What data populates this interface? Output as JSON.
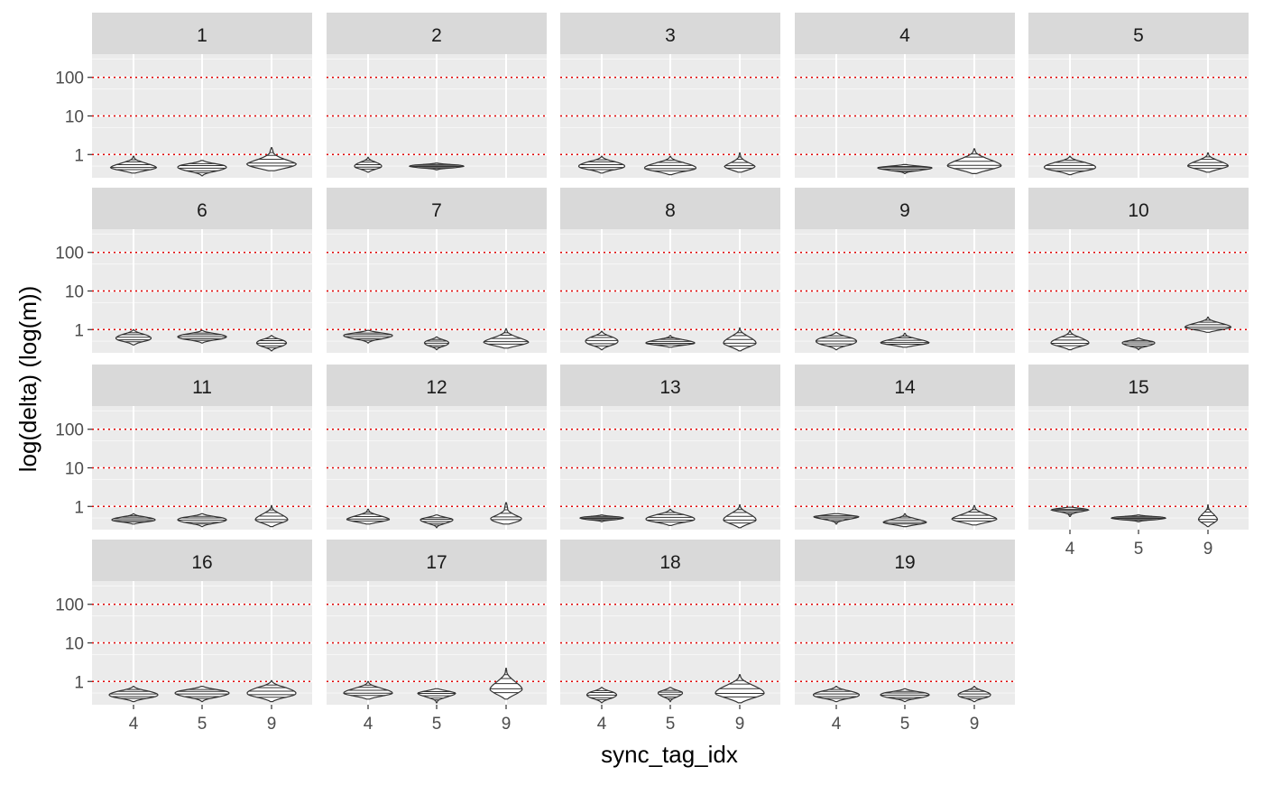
{
  "chart_data": {
    "type": "violin",
    "faceted": true,
    "xlabel": "sync_tag_idx",
    "ylabel": "log(delta) (log(m))",
    "x_categories": [
      "4",
      "5",
      "9"
    ],
    "y_scale": "log10",
    "y_ticks": [
      1,
      10,
      100
    ],
    "y_tick_labels": [
      "1",
      "10",
      "100"
    ],
    "ylim": [
      0.25,
      400
    ],
    "reference_lines": {
      "values": [
        1,
        10,
        100
      ],
      "color": "#e00000",
      "style": "dotted"
    },
    "panel_background": "#ebebeb",
    "strip_background": "#d9d9d9",
    "grid": true,
    "panels": [
      {
        "label": "1",
        "violins": [
          {
            "x": "4",
            "min": 0.33,
            "max": 0.9,
            "peak": 0.45,
            "width": 0.85
          },
          {
            "x": "5",
            "min": 0.28,
            "max": 0.7,
            "peak": 0.47,
            "width": 0.9
          },
          {
            "x": "9",
            "min": 0.38,
            "max": 1.5,
            "peak": 0.5,
            "width": 1.0
          }
        ]
      },
      {
        "label": "2",
        "violins": [
          {
            "x": "4",
            "min": 0.35,
            "max": 0.85,
            "peak": 0.5,
            "width": 0.5
          },
          {
            "x": "5",
            "min": 0.4,
            "max": 0.6,
            "peak": 0.5,
            "width": 1.0
          }
        ]
      },
      {
        "label": "3",
        "violins": [
          {
            "x": "4",
            "min": 0.33,
            "max": 0.9,
            "peak": 0.5,
            "width": 0.85
          },
          {
            "x": "5",
            "min": 0.3,
            "max": 0.9,
            "peak": 0.45,
            "width": 0.95
          },
          {
            "x": "9",
            "min": 0.35,
            "max": 1.1,
            "peak": 0.45,
            "width": 0.6
          }
        ]
      },
      {
        "label": "4",
        "violins": [
          {
            "x": "5",
            "min": 0.32,
            "max": 0.55,
            "peak": 0.45,
            "width": 1.0
          },
          {
            "x": "9",
            "min": 0.32,
            "max": 1.4,
            "peak": 0.5,
            "width": 1.0
          }
        ]
      },
      {
        "label": "5",
        "violins": [
          {
            "x": "4",
            "min": 0.3,
            "max": 0.9,
            "peak": 0.47,
            "width": 0.95
          },
          {
            "x": "9",
            "min": 0.35,
            "max": 1.1,
            "peak": 0.5,
            "width": 0.75
          }
        ]
      },
      {
        "label": "6",
        "violins": [
          {
            "x": "4",
            "min": 0.4,
            "max": 1.0,
            "peak": 0.6,
            "width": 0.65
          },
          {
            "x": "5",
            "min": 0.45,
            "max": 0.95,
            "peak": 0.65,
            "width": 0.9
          },
          {
            "x": "9",
            "min": 0.28,
            "max": 0.7,
            "peak": 0.45,
            "width": 0.55
          }
        ]
      },
      {
        "label": "7",
        "violins": [
          {
            "x": "4",
            "min": 0.45,
            "max": 0.95,
            "peak": 0.7,
            "width": 0.9
          },
          {
            "x": "5",
            "min": 0.3,
            "max": 0.65,
            "peak": 0.45,
            "width": 0.45
          },
          {
            "x": "9",
            "min": 0.33,
            "max": 1.05,
            "peak": 0.45,
            "width": 0.85
          }
        ]
      },
      {
        "label": "8",
        "violins": [
          {
            "x": "4",
            "min": 0.3,
            "max": 0.9,
            "peak": 0.5,
            "width": 0.6
          },
          {
            "x": "5",
            "min": 0.35,
            "max": 0.7,
            "peak": 0.45,
            "width": 0.9
          },
          {
            "x": "9",
            "min": 0.28,
            "max": 1.1,
            "peak": 0.45,
            "width": 0.6
          }
        ]
      },
      {
        "label": "9",
        "violins": [
          {
            "x": "4",
            "min": 0.3,
            "max": 0.85,
            "peak": 0.5,
            "width": 0.75
          },
          {
            "x": "5",
            "min": 0.35,
            "max": 0.8,
            "peak": 0.45,
            "width": 0.9
          }
        ]
      },
      {
        "label": "10",
        "violins": [
          {
            "x": "4",
            "min": 0.3,
            "max": 0.95,
            "peak": 0.45,
            "width": 0.7
          },
          {
            "x": "5",
            "min": 0.3,
            "max": 0.6,
            "peak": 0.45,
            "width": 0.6
          },
          {
            "x": "9",
            "min": 0.85,
            "max": 2.1,
            "peak": 1.15,
            "width": 0.85
          }
        ]
      },
      {
        "label": "11",
        "violins": [
          {
            "x": "4",
            "min": 0.35,
            "max": 0.65,
            "peak": 0.45,
            "width": 0.8
          },
          {
            "x": "5",
            "min": 0.3,
            "max": 0.65,
            "peak": 0.45,
            "width": 0.9
          },
          {
            "x": "9",
            "min": 0.3,
            "max": 1.05,
            "peak": 0.45,
            "width": 0.6
          }
        ]
      },
      {
        "label": "12",
        "violins": [
          {
            "x": "4",
            "min": 0.35,
            "max": 0.85,
            "peak": 0.45,
            "width": 0.8
          },
          {
            "x": "5",
            "min": 0.28,
            "max": 0.6,
            "peak": 0.45,
            "width": 0.6
          },
          {
            "x": "9",
            "min": 0.35,
            "max": 1.25,
            "peak": 0.4,
            "width": 0.75
          }
        ]
      },
      {
        "label": "13",
        "violins": [
          {
            "x": "4",
            "min": 0.4,
            "max": 0.6,
            "peak": 0.5,
            "width": 0.8
          },
          {
            "x": "5",
            "min": 0.32,
            "max": 0.85,
            "peak": 0.47,
            "width": 0.9
          },
          {
            "x": "9",
            "min": 0.28,
            "max": 1.1,
            "peak": 0.45,
            "width": 0.6
          }
        ]
      },
      {
        "label": "14",
        "violins": [
          {
            "x": "4",
            "min": 0.35,
            "max": 0.65,
            "peak": 0.55,
            "width": 0.85
          },
          {
            "x": "5",
            "min": 0.3,
            "max": 0.65,
            "peak": 0.38,
            "width": 0.8
          },
          {
            "x": "9",
            "min": 0.33,
            "max": 1.05,
            "peak": 0.45,
            "width": 0.85
          }
        ]
      },
      {
        "label": "15",
        "violins": [
          {
            "x": "4",
            "min": 0.55,
            "max": 0.95,
            "peak": 0.85,
            "width": 0.75
          },
          {
            "x": "5",
            "min": 0.4,
            "max": 0.6,
            "peak": 0.5,
            "width": 1.0
          },
          {
            "x": "9",
            "min": 0.3,
            "max": 1.1,
            "peak": 0.45,
            "width": 0.35
          }
        ]
      },
      {
        "label": "16",
        "violins": [
          {
            "x": "4",
            "min": 0.3,
            "max": 0.75,
            "peak": 0.45,
            "width": 0.9
          },
          {
            "x": "5",
            "min": 0.3,
            "max": 0.75,
            "peak": 0.5,
            "width": 1.0
          },
          {
            "x": "9",
            "min": 0.3,
            "max": 1.05,
            "peak": 0.5,
            "width": 0.9
          }
        ]
      },
      {
        "label": "17",
        "violins": [
          {
            "x": "4",
            "min": 0.35,
            "max": 1.0,
            "peak": 0.5,
            "width": 0.9
          },
          {
            "x": "5",
            "min": 0.28,
            "max": 0.65,
            "peak": 0.5,
            "width": 0.7
          },
          {
            "x": "9",
            "min": 0.35,
            "max": 2.2,
            "peak": 0.6,
            "width": 0.6
          }
        ]
      },
      {
        "label": "18",
        "violins": [
          {
            "x": "4",
            "min": 0.28,
            "max": 0.7,
            "peak": 0.45,
            "width": 0.55
          },
          {
            "x": "5",
            "min": 0.3,
            "max": 0.7,
            "peak": 0.5,
            "width": 0.45
          },
          {
            "x": "9",
            "min": 0.28,
            "max": 1.5,
            "peak": 0.5,
            "width": 0.9
          }
        ]
      },
      {
        "label": "19",
        "violins": [
          {
            "x": "4",
            "min": 0.3,
            "max": 0.75,
            "peak": 0.45,
            "width": 0.85
          },
          {
            "x": "5",
            "min": 0.3,
            "max": 0.65,
            "peak": 0.45,
            "width": 0.9
          },
          {
            "x": "9",
            "min": 0.3,
            "max": 0.75,
            "peak": 0.45,
            "width": 0.6
          }
        ]
      }
    ]
  }
}
